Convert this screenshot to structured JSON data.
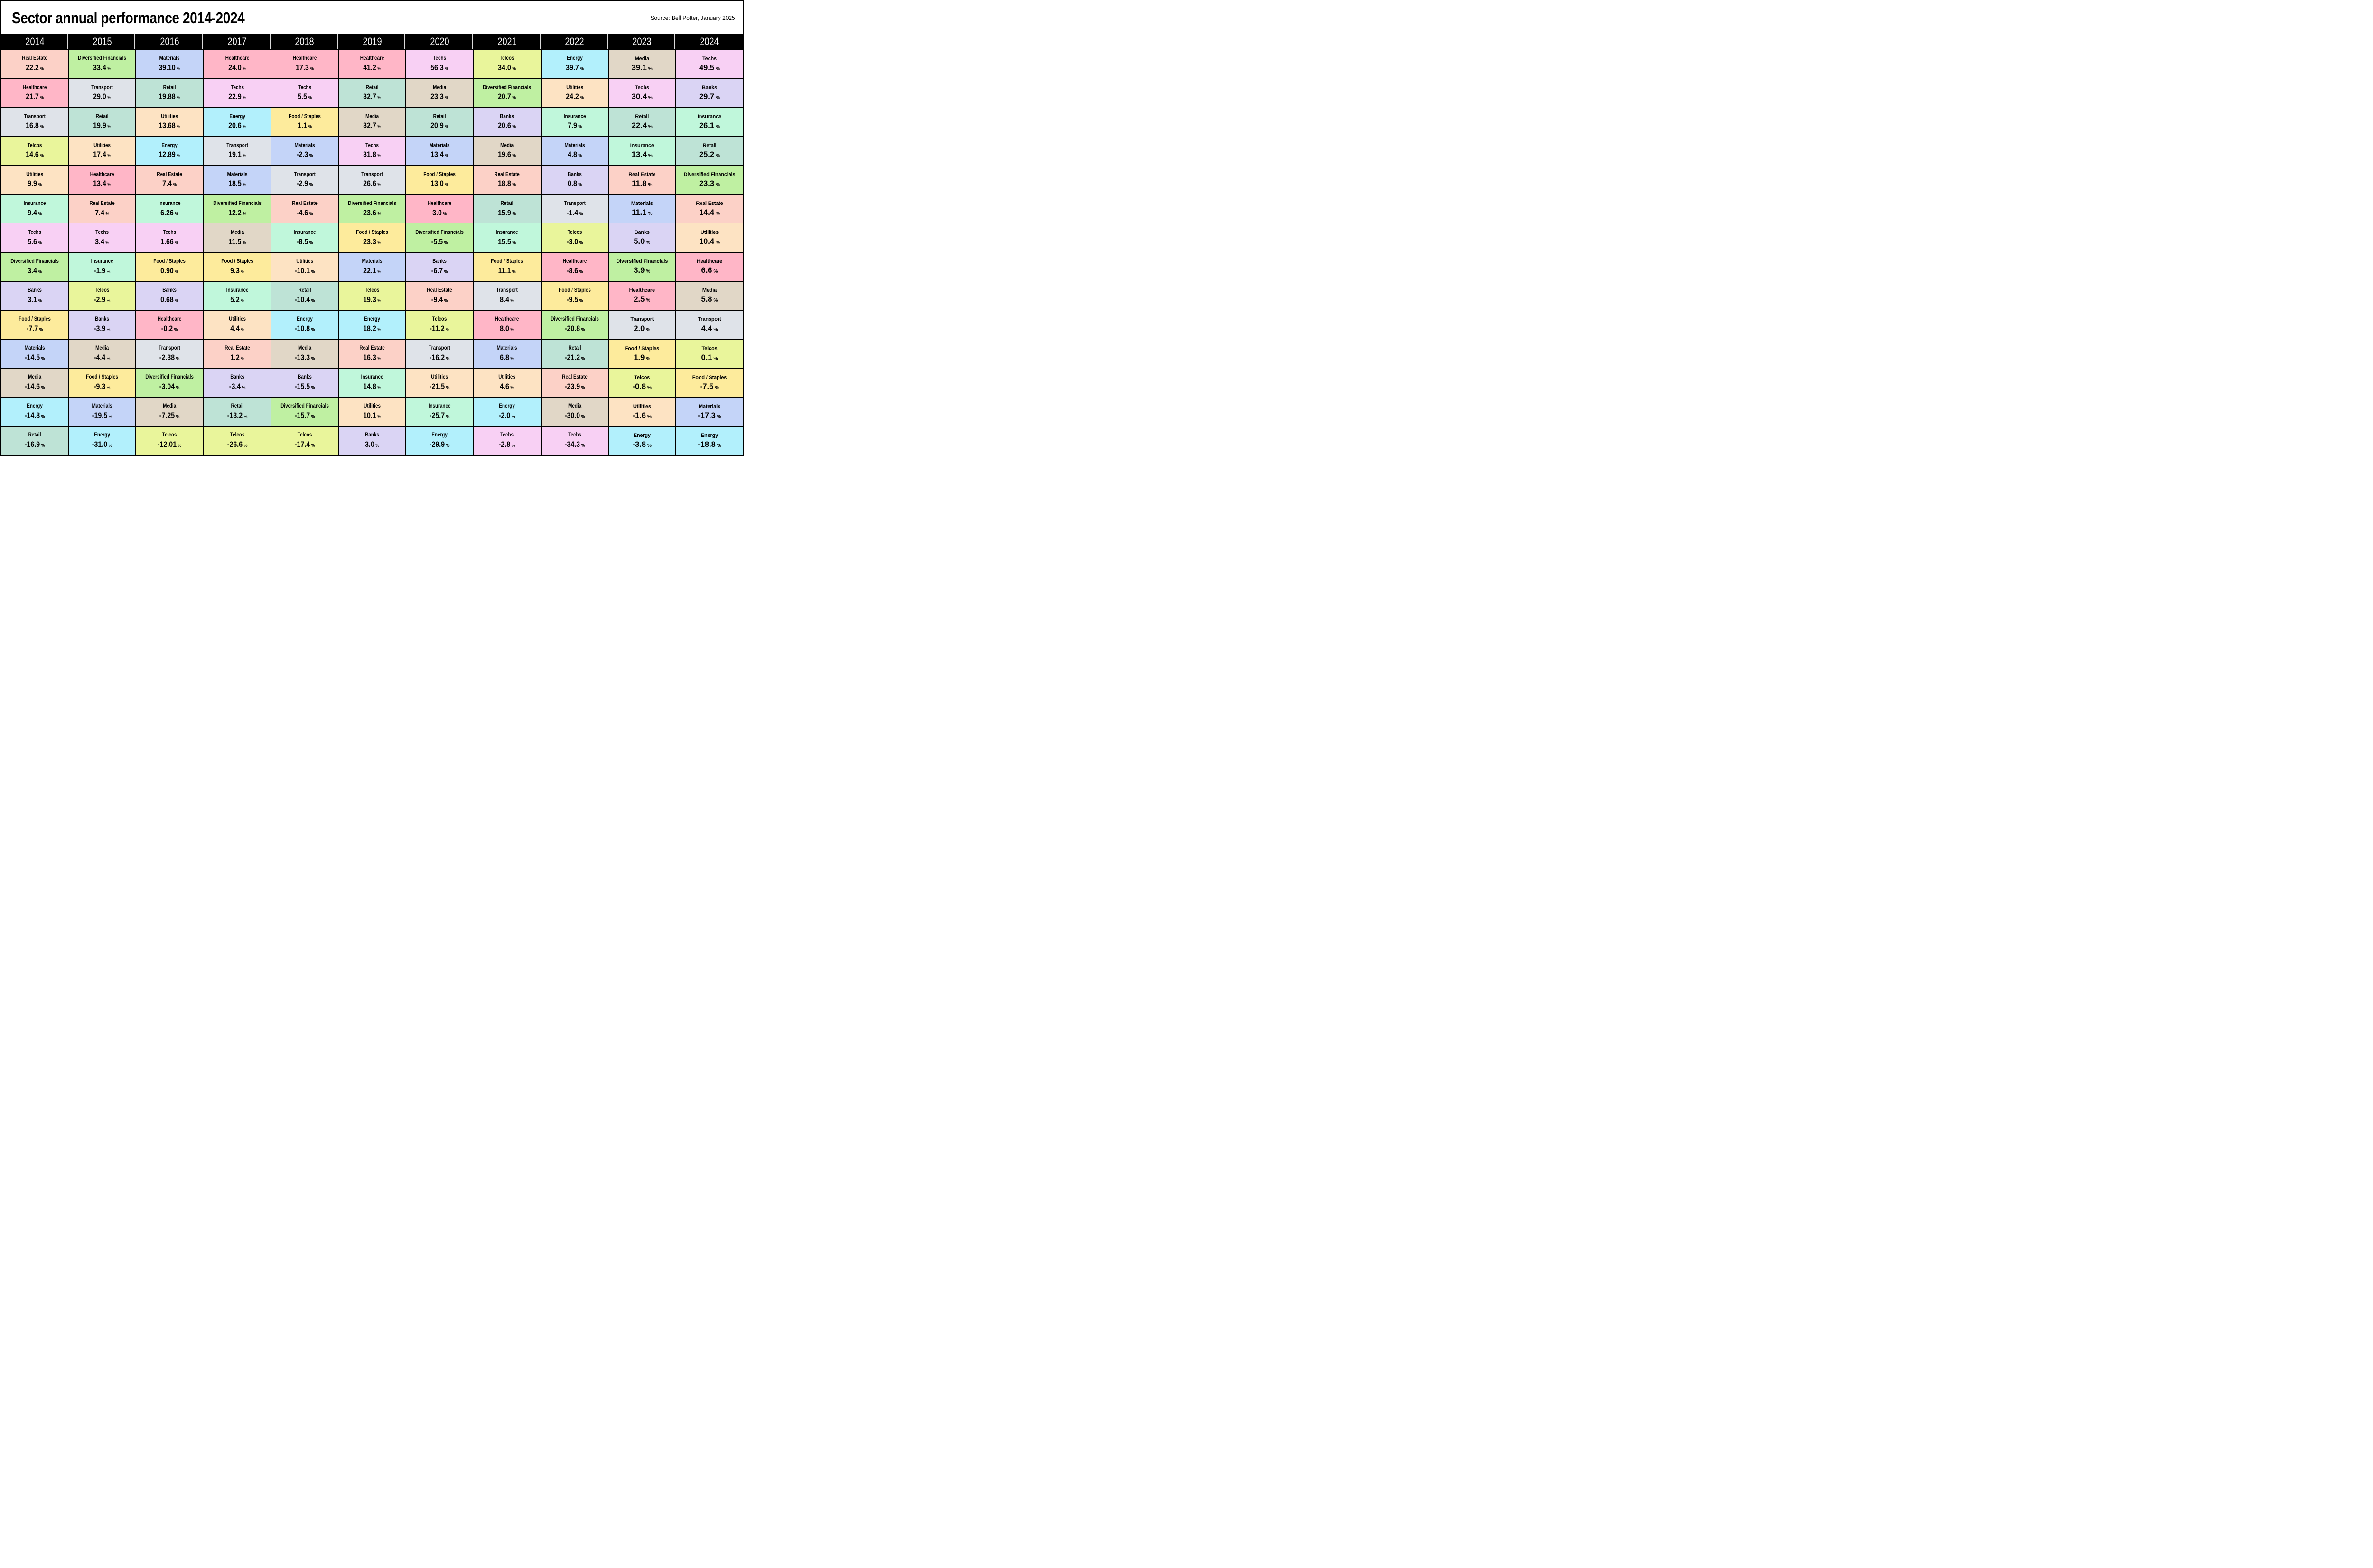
{
  "chart_data": {
    "type": "table",
    "title": "Sector annual performance 2014-2024",
    "source": "Source: Bell Potter, January 2025",
    "unit": "%",
    "layout": "quilt-table of 11 year columns, each ranking 14 sectors best-to-worst top-to-bottom",
    "columns": [
      {
        "year": "2014",
        "cells": [
          {
            "sector": "Real Estate",
            "value": "22.2"
          },
          {
            "sector": "Healthcare",
            "value": "21.7"
          },
          {
            "sector": "Transport",
            "value": "16.8"
          },
          {
            "sector": "Telcos",
            "value": "14.6"
          },
          {
            "sector": "Utilities",
            "value": "9.9"
          },
          {
            "sector": "Insurance",
            "value": "9.4"
          },
          {
            "sector": "Techs",
            "value": "5.6"
          },
          {
            "sector": "Diversified Financials",
            "value": "3.4"
          },
          {
            "sector": "Banks",
            "value": "3.1"
          },
          {
            "sector": "Food / Staples",
            "value": "-7.7"
          },
          {
            "sector": "Materials",
            "value": "-14.5"
          },
          {
            "sector": "Media",
            "value": "-14.6"
          },
          {
            "sector": "Energy",
            "value": "-14.8"
          },
          {
            "sector": "Retail",
            "value": "-16.9"
          }
        ]
      },
      {
        "year": "2015",
        "cells": [
          {
            "sector": "Diversified Financials",
            "value": "33.4"
          },
          {
            "sector": "Transport",
            "value": "29.0"
          },
          {
            "sector": "Retail",
            "value": "19.9"
          },
          {
            "sector": "Utilities",
            "value": "17.4"
          },
          {
            "sector": "Healthcare",
            "value": "13.4"
          },
          {
            "sector": "Real Estate",
            "value": "7.4"
          },
          {
            "sector": "Techs",
            "value": "3.4"
          },
          {
            "sector": "Insurance",
            "value": "-1.9"
          },
          {
            "sector": "Telcos",
            "value": "-2.9"
          },
          {
            "sector": "Banks",
            "value": "-3.9"
          },
          {
            "sector": "Media",
            "value": "-4.4"
          },
          {
            "sector": "Food / Staples",
            "value": "-9.3"
          },
          {
            "sector": "Materials",
            "value": "-19.5"
          },
          {
            "sector": "Energy",
            "value": "-31.0"
          }
        ]
      },
      {
        "year": "2016",
        "cells": [
          {
            "sector": "Materials",
            "value": "39.10"
          },
          {
            "sector": "Retail",
            "value": "19.88"
          },
          {
            "sector": "Utilities",
            "value": "13.68"
          },
          {
            "sector": "Energy",
            "value": "12.89"
          },
          {
            "sector": "Real Estate",
            "value": "7.4"
          },
          {
            "sector": "Insurance",
            "value": "6.26"
          },
          {
            "sector": "Techs",
            "value": "1.66"
          },
          {
            "sector": "Food / Staples",
            "value": "0.90"
          },
          {
            "sector": "Banks",
            "value": "0.68"
          },
          {
            "sector": "Healthcare",
            "value": "-0.2"
          },
          {
            "sector": "Transport",
            "value": "-2.38"
          },
          {
            "sector": "Diversified Financials",
            "value": "-3.04"
          },
          {
            "sector": "Media",
            "value": "-7.25"
          },
          {
            "sector": "Telcos",
            "value": "-12.01"
          }
        ]
      },
      {
        "year": "2017",
        "cells": [
          {
            "sector": "Healthcare",
            "value": "24.0"
          },
          {
            "sector": "Techs",
            "value": "22.9"
          },
          {
            "sector": "Energy",
            "value": "20.6"
          },
          {
            "sector": "Transport",
            "value": "19.1"
          },
          {
            "sector": "Materials",
            "value": "18.5"
          },
          {
            "sector": "Diversified Financials",
            "value": "12.2"
          },
          {
            "sector": "Media",
            "value": "11.5"
          },
          {
            "sector": "Food / Staples",
            "value": "9.3"
          },
          {
            "sector": "Insurance",
            "value": "5.2"
          },
          {
            "sector": "Utilities",
            "value": "4.4"
          },
          {
            "sector": "Real Estate",
            "value": "1.2"
          },
          {
            "sector": "Banks",
            "value": "-3.4"
          },
          {
            "sector": "Retail",
            "value": "-13.2"
          },
          {
            "sector": "Telcos",
            "value": "-26.6"
          }
        ]
      },
      {
        "year": "2018",
        "cells": [
          {
            "sector": "Healthcare",
            "value": "17.3"
          },
          {
            "sector": "Techs",
            "value": "5.5"
          },
          {
            "sector": "Food / Staples",
            "value": "1.1"
          },
          {
            "sector": "Materials",
            "value": "-2.3"
          },
          {
            "sector": "Transport",
            "value": "-2.9"
          },
          {
            "sector": "Real Estate",
            "value": "-4.6"
          },
          {
            "sector": "Insurance",
            "value": "-8.5"
          },
          {
            "sector": "Utilities",
            "value": "-10.1"
          },
          {
            "sector": "Retail",
            "value": "-10.4"
          },
          {
            "sector": "Energy",
            "value": "-10.8"
          },
          {
            "sector": "Media",
            "value": "-13.3"
          },
          {
            "sector": "Banks",
            "value": "-15.5"
          },
          {
            "sector": "Diversified Financials",
            "value": "-15.7"
          },
          {
            "sector": "Telcos",
            "value": "-17.4"
          }
        ]
      },
      {
        "year": "2019",
        "cells": [
          {
            "sector": "Healthcare",
            "value": "41.2"
          },
          {
            "sector": "Retail",
            "value": "32.7"
          },
          {
            "sector": "Media",
            "value": "32.7"
          },
          {
            "sector": "Techs",
            "value": "31.8"
          },
          {
            "sector": "Transport",
            "value": "26.6"
          },
          {
            "sector": "Diversified Financials",
            "value": "23.6"
          },
          {
            "sector": "Food / Staples",
            "value": "23.3"
          },
          {
            "sector": "Materials",
            "value": "22.1"
          },
          {
            "sector": "Telcos",
            "value": "19.3"
          },
          {
            "sector": "Energy",
            "value": "18.2"
          },
          {
            "sector": "Real Estate",
            "value": "16.3"
          },
          {
            "sector": "Insurance",
            "value": "14.8"
          },
          {
            "sector": "Utilities",
            "value": "10.1"
          },
          {
            "sector": "Banks",
            "value": "3.0"
          }
        ]
      },
      {
        "year": "2020",
        "cells": [
          {
            "sector": "Techs",
            "value": "56.3"
          },
          {
            "sector": "Media",
            "value": "23.3"
          },
          {
            "sector": "Retail",
            "value": "20.9"
          },
          {
            "sector": "Materials",
            "value": "13.4"
          },
          {
            "sector": "Food / Staples",
            "value": "13.0"
          },
          {
            "sector": "Healthcare",
            "value": "3.0"
          },
          {
            "sector": "Diversified Financials",
            "value": "-5.5"
          },
          {
            "sector": "Banks",
            "value": "-6.7"
          },
          {
            "sector": "Real Estate",
            "value": "-9.4"
          },
          {
            "sector": "Telcos",
            "value": "-11.2"
          },
          {
            "sector": "Transport",
            "value": "-16.2"
          },
          {
            "sector": "Utilities",
            "value": "-21.5"
          },
          {
            "sector": "Insurance",
            "value": "-25.7"
          },
          {
            "sector": "Energy",
            "value": "-29.9"
          }
        ]
      },
      {
        "year": "2021",
        "cells": [
          {
            "sector": "Telcos",
            "value": "34.0"
          },
          {
            "sector": "Diversified Financials",
            "value": "20.7"
          },
          {
            "sector": "Banks",
            "value": "20.6"
          },
          {
            "sector": "Media",
            "value": "19.6"
          },
          {
            "sector": "Real Estate",
            "value": "18.8"
          },
          {
            "sector": "Retail",
            "value": "15.9"
          },
          {
            "sector": "Insurance",
            "value": "15.5"
          },
          {
            "sector": "Food / Staples",
            "value": "11.1"
          },
          {
            "sector": "Transport",
            "value": "8.4"
          },
          {
            "sector": "Healthcare",
            "value": "8.0"
          },
          {
            "sector": "Materials",
            "value": "6.8"
          },
          {
            "sector": "Utilities",
            "value": "4.6"
          },
          {
            "sector": "Energy",
            "value": "-2.0"
          },
          {
            "sector": "Techs",
            "value": "-2.8"
          }
        ]
      },
      {
        "year": "2022",
        "cells": [
          {
            "sector": "Energy",
            "value": "39.7"
          },
          {
            "sector": "Utilities",
            "value": "24.2"
          },
          {
            "sector": "Insurance",
            "value": "7.9"
          },
          {
            "sector": "Materials",
            "value": "4.8"
          },
          {
            "sector": "Banks",
            "value": "0.8"
          },
          {
            "sector": "Transport",
            "value": "-1.4"
          },
          {
            "sector": "Telcos",
            "value": "-3.0"
          },
          {
            "sector": "Healthcare",
            "value": "-8.6"
          },
          {
            "sector": "Food / Staples",
            "value": "-9.5"
          },
          {
            "sector": "Diversified Financials",
            "value": "-20.8"
          },
          {
            "sector": "Retail",
            "value": "-21.2"
          },
          {
            "sector": "Real Estate",
            "value": "-23.9"
          },
          {
            "sector": "Media",
            "value": "-30.0"
          },
          {
            "sector": "Techs",
            "value": "-34.3"
          }
        ]
      },
      {
        "year": "2023",
        "cells": [
          {
            "sector": "Media",
            "value": "39.1"
          },
          {
            "sector": "Techs",
            "value": "30.4"
          },
          {
            "sector": "Retail",
            "value": "22.4"
          },
          {
            "sector": "Insurance",
            "value": "13.4"
          },
          {
            "sector": "Real Estate",
            "value": "11.8"
          },
          {
            "sector": "Materials",
            "value": "11.1"
          },
          {
            "sector": "Banks",
            "value": "5.0"
          },
          {
            "sector": "Diversified Financials",
            "value": "3.9"
          },
          {
            "sector": "Healthcare",
            "value": "2.5"
          },
          {
            "sector": "Transport",
            "value": "2.0"
          },
          {
            "sector": "Food / Staples",
            "value": "1.9"
          },
          {
            "sector": "Telcos",
            "value": "-0.8"
          },
          {
            "sector": "Utilities",
            "value": "-1.6"
          },
          {
            "sector": "Energy",
            "value": "-3.8"
          }
        ]
      },
      {
        "year": "2024",
        "cells": [
          {
            "sector": "Techs",
            "value": "49.5"
          },
          {
            "sector": "Banks",
            "value": "29.7"
          },
          {
            "sector": "Insurance",
            "value": "26.1"
          },
          {
            "sector": "Retail",
            "value": "25.2"
          },
          {
            "sector": "Diversified Financials",
            "value": "23.3"
          },
          {
            "sector": "Real Estate",
            "value": "14.4"
          },
          {
            "sector": "Utilities",
            "value": "10.4"
          },
          {
            "sector": "Healthcare",
            "value": "6.6"
          },
          {
            "sector": "Media",
            "value": "5.8"
          },
          {
            "sector": "Transport",
            "value": "4.4"
          },
          {
            "sector": "Telcos",
            "value": "0.1"
          },
          {
            "sector": "Food / Staples",
            "value": "-7.5"
          },
          {
            "sector": "Materials",
            "value": "-17.3"
          },
          {
            "sector": "Energy",
            "value": "-18.8"
          }
        ]
      }
    ]
  },
  "sector_colors": {
    "Real Estate": "#FCD1C7",
    "Healthcare": "#FFB6C7",
    "Transport": "#DFE3E9",
    "Telcos": "#E9F59B",
    "Utilities": "#FDE3C3",
    "Insurance": "#C0F7DB",
    "Techs": "#F8D0F4",
    "Diversified Financials": "#BFF0A2",
    "Banks": "#DAD4F4",
    "Food / Staples": "#FDEB9C",
    "Materials": "#C4D4F8",
    "Media": "#E1D7C7",
    "Energy": "#B2F0FC",
    "Retail": "#BEE3D6"
  },
  "header_colors": {
    "background": "#000000",
    "text": "#FFFFFF"
  }
}
